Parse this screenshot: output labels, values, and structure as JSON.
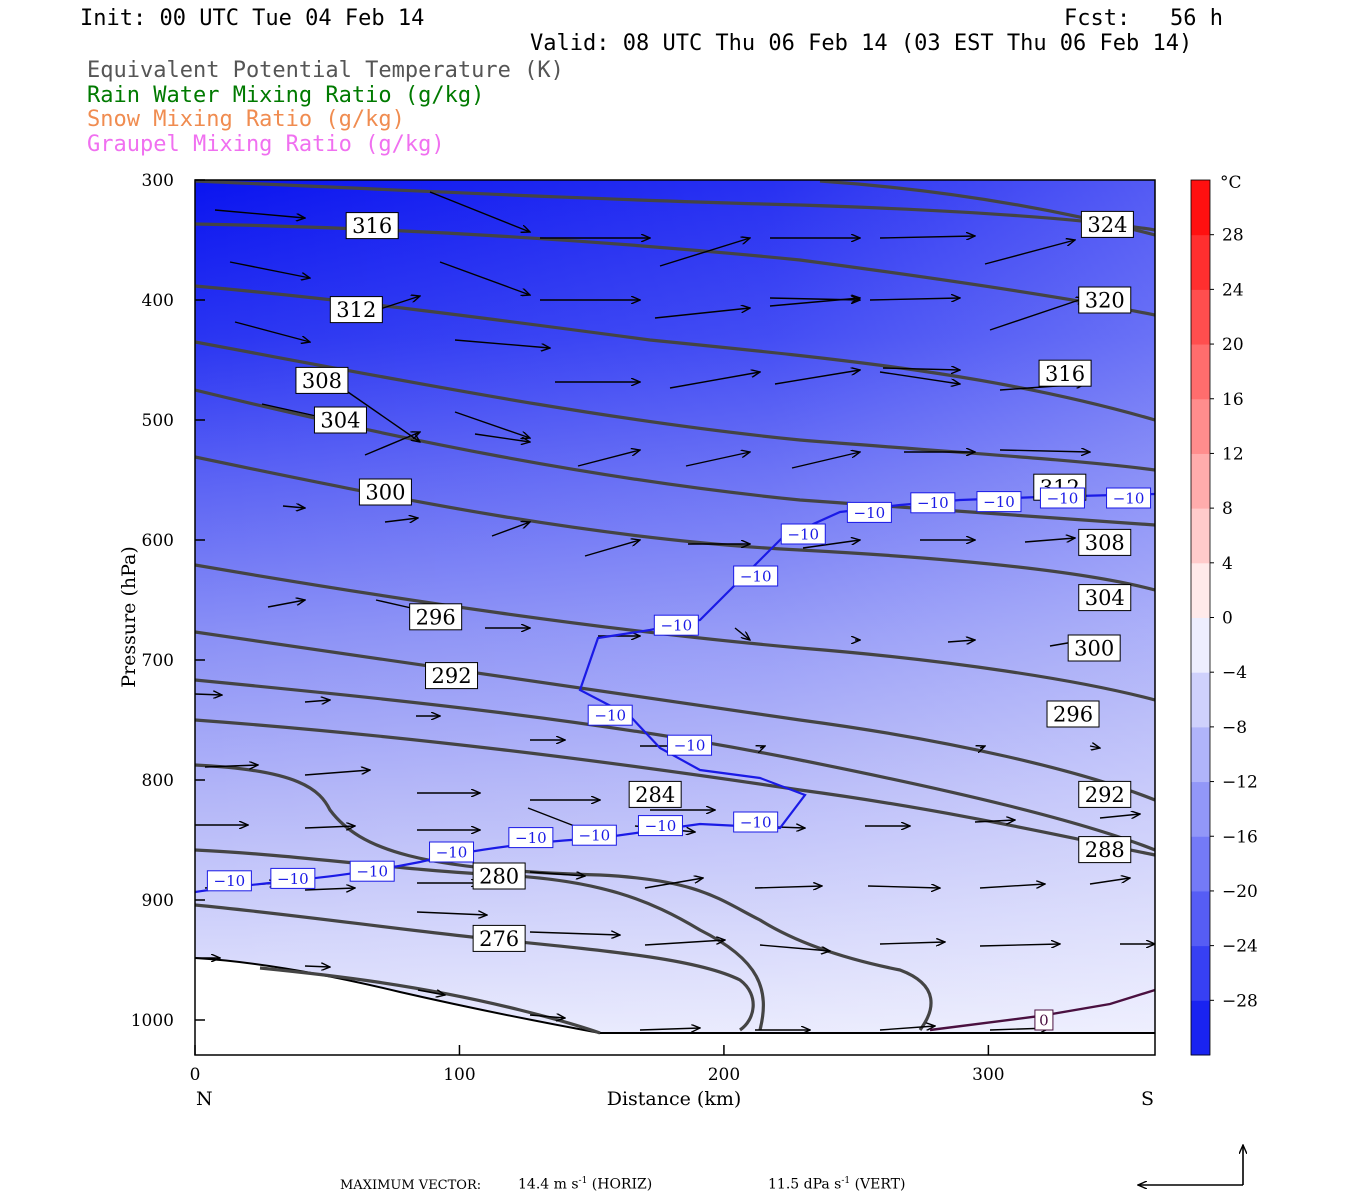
{
  "header": {
    "init": "Init: 00 UTC Tue 04 Feb 14",
    "fcst": "Fcst:   56 h",
    "valid": "Valid: 08 UTC Thu 06 Feb 14 (03 EST Thu 06 Feb 14)"
  },
  "legend": [
    {
      "text": "Equivalent Potential Temperature (K)",
      "color": "#555555"
    },
    {
      "text": "Rain Water Mixing Ratio (g/kg)",
      "color": "#007a00"
    },
    {
      "text": "Snow Mixing Ratio (g/kg)",
      "color": "#f08c50"
    },
    {
      "text": "Graupel Mixing Ratio (g/kg)",
      "color": "#f070f0"
    }
  ],
  "colors": {
    "theta_e_contour": "#444444",
    "isotherm_m10": "#1a1ae6",
    "isotherm_0": "#4a1040",
    "fill_coldest": "#0a14f0",
    "fill_warm_end": "#ff0000"
  },
  "chart_data": {
    "type": "contour",
    "xlabel": "Distance (km)",
    "ylabel": "Pressure (hPa)",
    "xlim": [
      0,
      363
    ],
    "ylim": [
      1030,
      300
    ],
    "y_scale": "pressure (inverted)",
    "x_ticks": [
      "0",
      "100",
      "200",
      "300"
    ],
    "x_tick_values": [
      0,
      100,
      200,
      300
    ],
    "y_ticks": [
      "300",
      "400",
      "500",
      "600",
      "700",
      "800",
      "900",
      "1000"
    ],
    "y_tick_values": [
      300,
      400,
      500,
      600,
      700,
      800,
      900,
      1000
    ],
    "left_end": "N",
    "right_end": "S",
    "colorbar": {
      "unit": "°C",
      "min": -32,
      "max": 32,
      "step": 4,
      "labels": [
        "28",
        "24",
        "20",
        "16",
        "12",
        "8",
        "4",
        "0",
        "−4",
        "−8",
        "−12",
        "−16",
        "−20",
        "−24",
        "−28"
      ],
      "label_values": [
        28,
        24,
        20,
        16,
        12,
        8,
        4,
        0,
        -4,
        -8,
        -12,
        -16,
        -20,
        -24,
        -28
      ]
    },
    "theta_e_labels": [
      {
        "text": "316",
        "x": 67,
        "p": 338
      },
      {
        "text": "312",
        "x": 61,
        "p": 408
      },
      {
        "text": "308",
        "x": 48,
        "p": 467
      },
      {
        "text": "304",
        "x": 55,
        "p": 500
      },
      {
        "text": "300",
        "x": 72,
        "p": 560
      },
      {
        "text": "296",
        "x": 91,
        "p": 664
      },
      {
        "text": "292",
        "x": 97,
        "p": 713
      },
      {
        "text": "284",
        "x": 174,
        "p": 812
      },
      {
        "text": "280",
        "x": 115,
        "p": 880
      },
      {
        "text": "276",
        "x": 115,
        "p": 932
      },
      {
        "text": "324",
        "x": 345,
        "p": 337
      },
      {
        "text": "320",
        "x": 344,
        "p": 400
      },
      {
        "text": "316",
        "x": 329,
        "p": 461
      },
      {
        "text": "312",
        "x": 327,
        "p": 556
      },
      {
        "text": "308",
        "x": 344,
        "p": 602
      },
      {
        "text": "304",
        "x": 344,
        "p": 648
      },
      {
        "text": "300",
        "x": 340,
        "p": 690
      },
      {
        "text": "296",
        "x": 332,
        "p": 745
      },
      {
        "text": "292",
        "x": 344,
        "p": 812
      },
      {
        "text": "288",
        "x": 344,
        "p": 858
      }
    ],
    "isotherm_labels": [
      {
        "text": "−10",
        "x": 13,
        "p": 884
      },
      {
        "text": "−10",
        "x": 37,
        "p": 882
      },
      {
        "text": "−10",
        "x": 67,
        "p": 876
      },
      {
        "text": "−10",
        "x": 97,
        "p": 860
      },
      {
        "text": "−10",
        "x": 127,
        "p": 848
      },
      {
        "text": "−10",
        "x": 151,
        "p": 846
      },
      {
        "text": "−10",
        "x": 176,
        "p": 838
      },
      {
        "text": "−10",
        "x": 212,
        "p": 835
      },
      {
        "text": "−10",
        "x": 187,
        "p": 771
      },
      {
        "text": "−10",
        "x": 157,
        "p": 746
      },
      {
        "text": "−10",
        "x": 182,
        "p": 671
      },
      {
        "text": "−10",
        "x": 212,
        "p": 630
      },
      {
        "text": "−10",
        "x": 230,
        "p": 595
      },
      {
        "text": "−10",
        "x": 255,
        "p": 577
      },
      {
        "text": "−10",
        "x": 279,
        "p": 569
      },
      {
        "text": "−10",
        "x": 304,
        "p": 568
      },
      {
        "text": "−10",
        "x": 328,
        "p": 565
      },
      {
        "text": "−10",
        "x": 353,
        "p": 565
      },
      {
        "text": "0",
        "x": 321,
        "p": 1000
      }
    ]
  },
  "footer": {
    "label": "MAXIMUM VECTOR:",
    "horiz_value": "14.4 m s",
    "horiz_exp": "-1",
    "horiz_tag": "(HORIZ)",
    "vert_value": "11.5 dPa s",
    "vert_exp": "-1",
    "vert_tag": "(VERT)"
  }
}
